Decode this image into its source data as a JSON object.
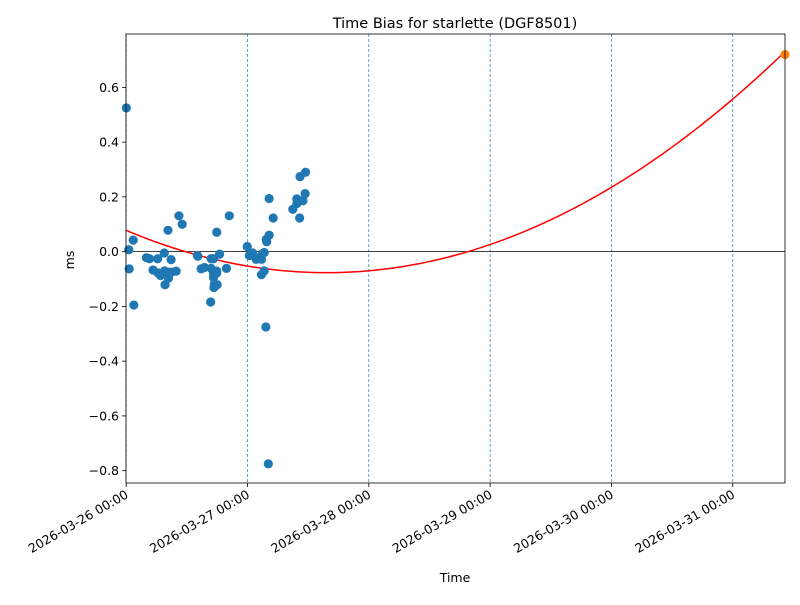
{
  "chart_data": {
    "type": "scatter",
    "title": "Time Bias for starlette (DGF8501)",
    "xlabel": "Time",
    "ylabel": "ms",
    "x_axis": {
      "kind": "datetime",
      "range": [
        "2026-03-25T23:58",
        "2026-03-31T10:20"
      ],
      "ticks": [
        "2026-03-26T00:00",
        "2026-03-27T00:00",
        "2026-03-28T00:00",
        "2026-03-29T00:00",
        "2026-03-30T00:00",
        "2026-03-31T00:00"
      ],
      "tick_labels": [
        "2026-03-26 00:00",
        "2026-03-27 00:00",
        "2026-03-28 00:00",
        "2026-03-29 00:00",
        "2026-03-30 00:00",
        "2026-03-31 00:00"
      ]
    },
    "y_axis": {
      "range": [
        -0.845,
        0.795
      ],
      "ticks": [
        -0.8,
        -0.6,
        -0.4,
        -0.2,
        0.0,
        0.2,
        0.4,
        0.6
      ],
      "tick_labels": [
        "−0.8",
        "−0.6",
        "−0.4",
        "−0.2",
        "0.0",
        "0.2",
        "0.4",
        "0.6"
      ]
    },
    "grid": "vertical dashed lines at x ticks",
    "zero_line": true,
    "colors": {
      "observed": "#1f77b4",
      "fit": "#ff0000",
      "prediction": "#ff7f0e",
      "grid": "#1f77b4",
      "zero_line": "#000000"
    },
    "series": [
      {
        "role": "observed",
        "points": [
          [
            "2026-03-26T00:02",
            0.525
          ],
          [
            "2026-03-26T00:31",
            0.007
          ],
          [
            "2026-03-26T00:36",
            -0.063
          ],
          [
            "2026-03-26T01:24",
            0.042
          ],
          [
            "2026-03-26T01:31",
            -0.195
          ],
          [
            "2026-03-26T04:00",
            -0.022
          ],
          [
            "2026-03-26T04:38",
            -0.026
          ],
          [
            "2026-03-26T05:19",
            -0.067
          ],
          [
            "2026-03-26T06:14",
            -0.026
          ],
          [
            "2026-03-26T06:19",
            -0.078
          ],
          [
            "2026-03-26T06:48",
            -0.087
          ],
          [
            "2026-03-26T07:32",
            -0.005
          ],
          [
            "2026-03-26T07:36",
            -0.07
          ],
          [
            "2026-03-26T07:41",
            -0.121
          ],
          [
            "2026-03-26T08:16",
            0.078
          ],
          [
            "2026-03-26T08:19",
            -0.087
          ],
          [
            "2026-03-26T08:22",
            -0.097
          ],
          [
            "2026-03-26T08:26",
            -0.075
          ],
          [
            "2026-03-26T08:53",
            -0.029
          ],
          [
            "2026-03-26T08:58",
            -0.075
          ],
          [
            "2026-03-26T09:53",
            -0.071
          ],
          [
            "2026-03-26T10:26",
            0.131
          ],
          [
            "2026-03-26T11:05",
            0.1
          ],
          [
            "2026-03-26T14:05",
            -0.014
          ],
          [
            "2026-03-26T14:10",
            -0.017
          ],
          [
            "2026-03-26T14:50",
            -0.063
          ],
          [
            "2026-03-26T15:29",
            -0.058
          ],
          [
            "2026-03-26T16:43",
            -0.184
          ],
          [
            "2026-03-26T16:48",
            -0.026
          ],
          [
            "2026-03-26T16:48",
            -0.061
          ],
          [
            "2026-03-26T17:17",
            -0.026
          ],
          [
            "2026-03-26T17:17",
            -0.08
          ],
          [
            "2026-03-26T17:17",
            -0.095
          ],
          [
            "2026-03-26T17:22",
            -0.131
          ],
          [
            "2026-03-26T17:26",
            -0.119
          ],
          [
            "2026-03-26T17:55",
            0.071
          ],
          [
            "2026-03-26T17:55",
            -0.071
          ],
          [
            "2026-03-26T17:55",
            -0.078
          ],
          [
            "2026-03-26T18:00",
            -0.121
          ],
          [
            "2026-03-26T18:29",
            -0.009
          ],
          [
            "2026-03-26T19:50",
            -0.061
          ],
          [
            "2026-03-26T20:24",
            0.131
          ],
          [
            "2026-03-26T23:57",
            0.019
          ],
          [
            "2026-03-27T00:22",
            -0.014
          ],
          [
            "2026-03-27T01:00",
            -0.005
          ],
          [
            "2026-03-27T01:43",
            -0.028
          ],
          [
            "2026-03-27T02:12",
            -0.022
          ],
          [
            "2026-03-27T02:41",
            -0.026
          ],
          [
            "2026-03-27T02:46",
            -0.084
          ],
          [
            "2026-03-27T02:46",
            -0.028
          ],
          [
            "2026-03-27T02:55",
            -0.008
          ],
          [
            "2026-03-27T03:19",
            -0.07
          ],
          [
            "2026-03-27T03:19",
            -0.003
          ],
          [
            "2026-03-27T03:38",
            -0.275
          ],
          [
            "2026-03-27T03:43",
            0.045
          ],
          [
            "2026-03-27T03:48",
            0.036
          ],
          [
            "2026-03-27T04:07",
            -0.775
          ],
          [
            "2026-03-27T04:17",
            0.194
          ],
          [
            "2026-03-27T04:17",
            0.06
          ],
          [
            "2026-03-27T05:05",
            0.123
          ],
          [
            "2026-03-27T08:58",
            0.155
          ],
          [
            "2026-03-27T09:46",
            0.193
          ],
          [
            "2026-03-27T09:46",
            0.176
          ],
          [
            "2026-03-27T10:19",
            0.123
          ],
          [
            "2026-03-27T10:24",
            0.274
          ],
          [
            "2026-03-27T10:58",
            0.186
          ],
          [
            "2026-03-27T11:24",
            0.212
          ],
          [
            "2026-03-27T11:29",
            0.29
          ]
        ]
      },
      {
        "role": "fit",
        "curve": "quadratic",
        "points": [
          [
            "2026-03-26T00:00",
            0.08
          ],
          [
            "2026-03-27T00:00",
            -0.052
          ],
          [
            "2026-03-27T18:00",
            -0.082
          ],
          [
            "2026-03-29T00:00",
            0.025
          ],
          [
            "2026-03-30T00:00",
            0.238
          ],
          [
            "2026-03-31T00:00",
            0.569
          ],
          [
            "2026-03-31T10:20",
            0.72
          ]
        ]
      },
      {
        "role": "prediction",
        "points": [
          [
            "2026-03-31T10:20",
            0.72
          ]
        ]
      }
    ]
  }
}
